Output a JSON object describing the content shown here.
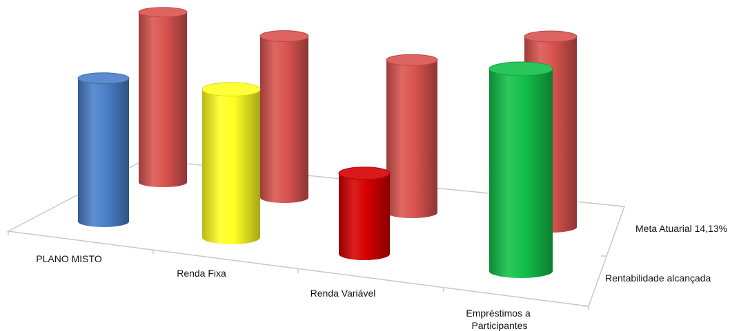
{
  "chart_data": {
    "type": "bar",
    "style": "3d-cylinder",
    "categories": [
      "PLANO MISTO",
      "Renda Fixa",
      "Renda Variável",
      "Empréstimos a Participantes"
    ],
    "series": [
      {
        "name": "Meta Atuarial 14,13%",
        "values": [
          14.13,
          14.13,
          14.13,
          14.13
        ],
        "colors": [
          "#d9534f",
          "#d9534f",
          "#d9534f",
          "#d9534f"
        ]
      },
      {
        "name": "Rentabilidade alcançada",
        "values": [
          11.9,
          12.3,
          6.7,
          16.8
        ],
        "colors": [
          "#4a7fc8",
          "#ffff22",
          "#d50000",
          "#12c04a"
        ]
      }
    ],
    "ylim": [
      0,
      18
    ],
    "grid": false,
    "legend": "none"
  }
}
